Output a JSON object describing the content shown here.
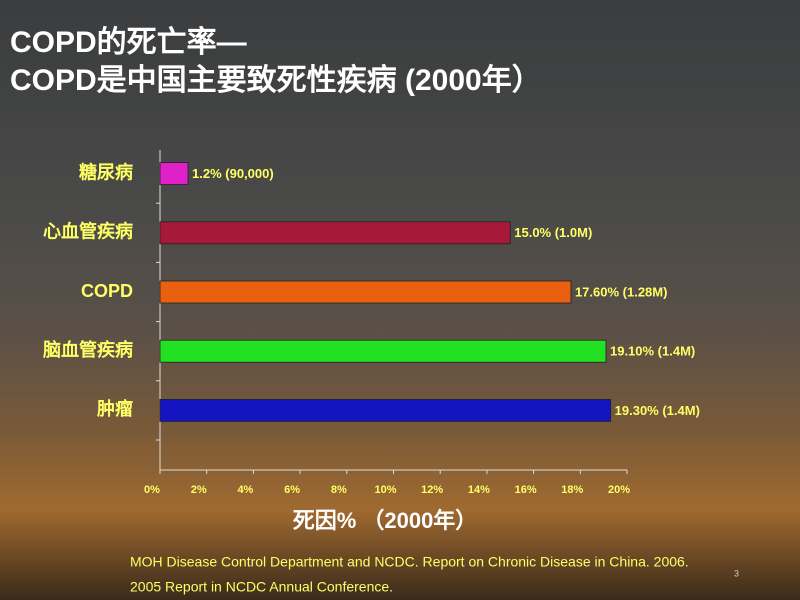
{
  "chart_data": {
    "type": "bar",
    "orientation": "horizontal",
    "title_lines": [
      "COPD的死亡率—",
      "COPD是中国主要致死性疾病 (2000年）"
    ],
    "categories": [
      "糖尿病",
      "心血管疾病",
      "COPD",
      "脑血管疾病",
      "肿瘤"
    ],
    "values": [
      1.2,
      15.0,
      17.6,
      19.1,
      19.3
    ],
    "value_labels": [
      "1.2% (90,000)",
      "15.0% (1.0M)",
      "17.60% (1.28M)",
      "19.10% (1.4M)",
      "19.30% (1.4M)"
    ],
    "colors": [
      "#e020c8",
      "#a81838",
      "#e86010",
      "#22e022",
      "#1414c0"
    ],
    "xlim": [
      0,
      20
    ],
    "xticks": [
      {
        "value": 0,
        "label": "0%"
      },
      {
        "value": 2,
        "label": "2%"
      },
      {
        "value": 4,
        "label": "4%"
      },
      {
        "value": 6,
        "label": "6%"
      },
      {
        "value": 8,
        "label": "8%"
      },
      {
        "value": 10,
        "label": "10%"
      },
      {
        "value": 12,
        "label": "12%"
      },
      {
        "value": 14,
        "label": "14%"
      },
      {
        "value": 16,
        "label": "16%"
      },
      {
        "value": 18,
        "label": "18%"
      },
      {
        "value": 20,
        "label": "20%"
      }
    ],
    "x_label": "死因% （2000年）",
    "footnote_lines": [
      "MOH Disease Control Department and NCDC. Report on Chronic Disease in China. 2006.",
      "2005 Report in NCDC Annual Conference."
    ],
    "page_number": "3"
  }
}
